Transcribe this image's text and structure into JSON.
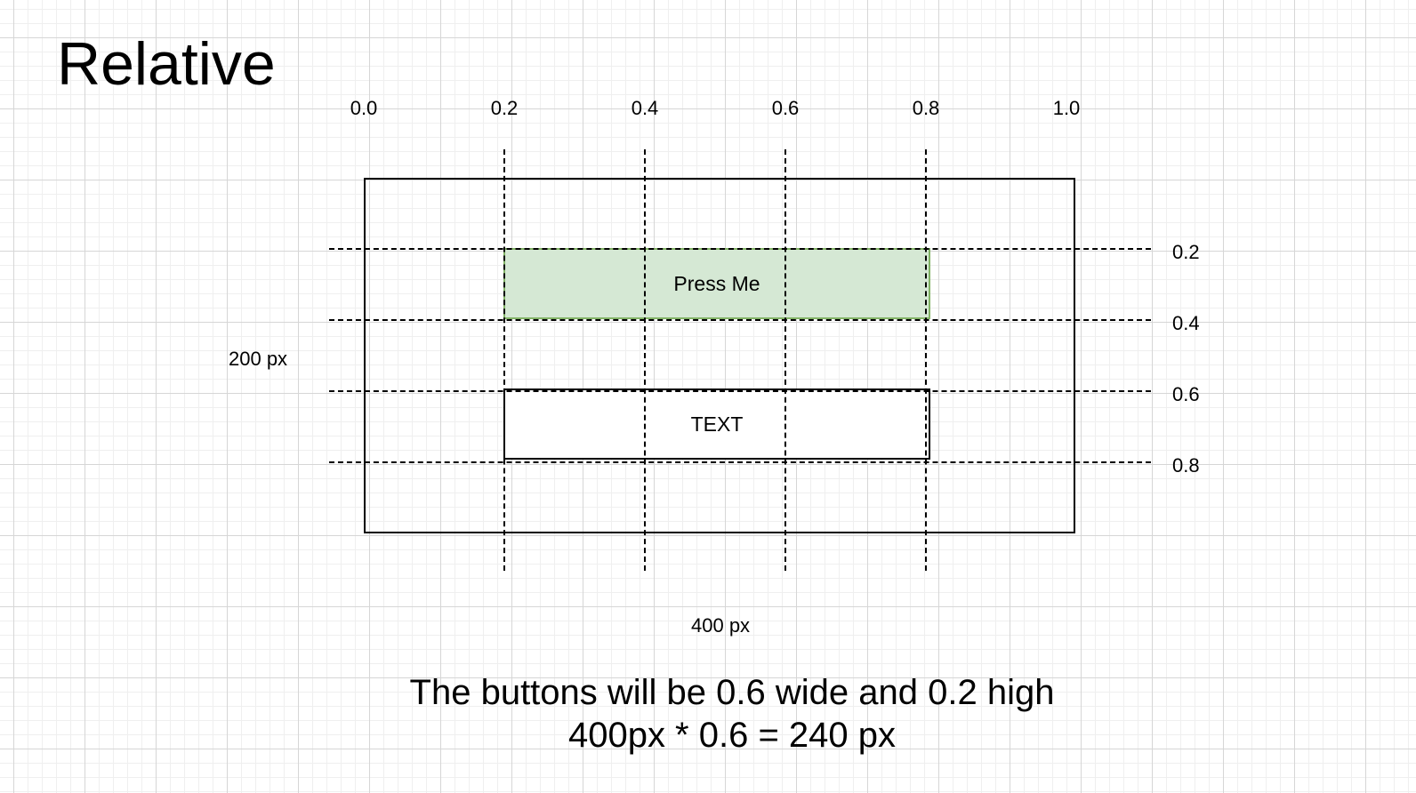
{
  "title": "Relative",
  "x_ticks": [
    "0.0",
    "0.2",
    "0.4",
    "0.6",
    "0.8",
    "1.0"
  ],
  "y_ticks": [
    "0.2",
    "0.4",
    "0.6",
    "0.8"
  ],
  "height_label": "200 px",
  "width_label": "400 px",
  "button": {
    "label": "Press Me",
    "fill_color": "#d5e8d4",
    "border_color": "#82b366"
  },
  "text_box": {
    "label": "TEXT"
  },
  "caption": {
    "line1": "The buttons will be 0.6 wide and 0.2 high",
    "line2": "400px * 0.6 = 240 px"
  }
}
